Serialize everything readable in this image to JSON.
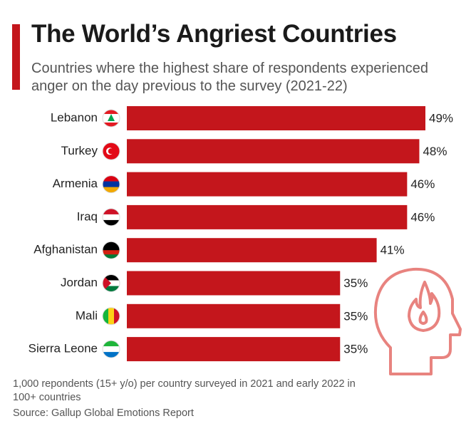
{
  "chart_data": {
    "type": "bar",
    "orientation": "horizontal",
    "title": "The World’s Angriest Countries",
    "subtitle": "Countries where the highest share of respondents experienced anger on the day previous to the survey (2021-22)",
    "categories": [
      "Lebanon",
      "Turkey",
      "Armenia",
      "Iraq",
      "Afghanistan",
      "Jordan",
      "Mali",
      "Sierra Leone"
    ],
    "values": [
      49,
      48,
      46,
      46,
      41,
      35,
      35,
      35
    ],
    "value_labels": [
      "49%",
      "48%",
      "46%",
      "46%",
      "41%",
      "35%",
      "35%",
      "35%"
    ],
    "color": "#c4161c",
    "note": "1,000 repondents (15+ y/o) per country surveyed in 2021 and early 2022 in 100+ countries",
    "source": "Source: Gallup Global Emotions Report"
  }
}
